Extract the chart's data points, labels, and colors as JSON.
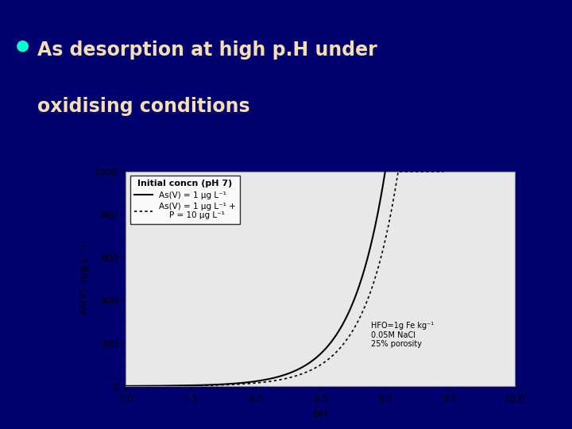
{
  "title_text_line1": "As desorption at high p.H under",
  "title_text_line2": "oxidising conditions",
  "title_color": "#F5DEB3",
  "bullet_color": "#00FFCC",
  "slide_bg": "#00006e",
  "title_bg_top": "#00006e",
  "title_bg_bottom": "#1a5aad",
  "chart_bg": "#e8e8e8",
  "chart_border": "#cccccc",
  "xlabel": "pH",
  "ylabel": "As(V)  (μg L⁻¹)",
  "xlim": [
    7,
    10
  ],
  "ylim": [
    0,
    1000
  ],
  "xticks": [
    7,
    7.5,
    8,
    8.5,
    9,
    9.5,
    10
  ],
  "yticks": [
    0,
    200,
    400,
    600,
    800,
    1000
  ],
  "legend_title": "Initial concn (pH 7)",
  "legend_line1": "As(V) = 1 μg L⁻¹",
  "legend_line2": "As(V) = 1 μg L⁻¹ +",
  "legend_line2b": "    P = 10 μg L⁻¹",
  "annotation": "HFO=1g Fe kg⁻¹\n0.05M NaCl\n25% porosity",
  "red_bar_color": "#cc2200",
  "left_bar_color": "#1a5aad"
}
